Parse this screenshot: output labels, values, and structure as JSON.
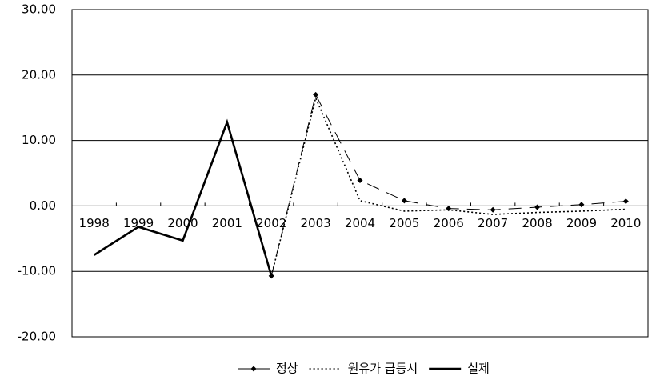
{
  "chart_data": {
    "type": "line",
    "categories": [
      "1998",
      "1999",
      "2000",
      "2001",
      "2002",
      "2003",
      "2004",
      "2005",
      "2006",
      "2007",
      "2008",
      "2009",
      "2010"
    ],
    "series": [
      {
        "name": "정상",
        "color": "#000000",
        "style": "dashed",
        "marker": "diamond",
        "values": [
          null,
          null,
          null,
          null,
          -10.7,
          17.0,
          3.9,
          0.8,
          -0.4,
          -0.6,
          -0.2,
          0.2,
          0.7
        ]
      },
      {
        "name": "원유가 급등시",
        "color": "#000000",
        "style": "dotted",
        "values": [
          null,
          null,
          null,
          null,
          -10.7,
          16.5,
          0.8,
          -0.8,
          -0.6,
          -1.3,
          -1.0,
          -0.8,
          -0.5
        ]
      },
      {
        "name": "실제",
        "color": "#000000",
        "style": "solid",
        "values": [
          -7.5,
          -3.2,
          -5.3,
          12.8,
          -10.7,
          null,
          null,
          null,
          null,
          null,
          null,
          null,
          null
        ]
      }
    ],
    "ylim": [
      -20,
      30
    ],
    "yticks": [
      {
        "value": -20,
        "label": "-20.00"
      },
      {
        "value": -10,
        "label": "-10.00"
      },
      {
        "value": 0,
        "label": "0.00"
      },
      {
        "value": 10,
        "label": "10.00"
      },
      {
        "value": 20,
        "label": "20.00"
      },
      {
        "value": 30,
        "label": "30.00"
      }
    ],
    "grid": true,
    "legend": "bottom"
  }
}
